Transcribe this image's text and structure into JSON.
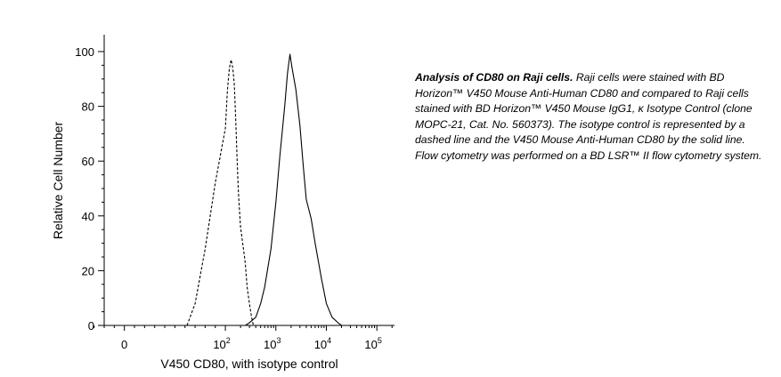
{
  "chart_data": {
    "type": "line",
    "xlabel": "V450 CD80, with isotype control",
    "ylabel": "Relative Cell Number",
    "xscale": "biexponential (log above 10^2, linear through 0)",
    "xlim_decades": [
      -0.4,
      5.35
    ],
    "ylim": [
      0,
      100
    ],
    "yticks": [
      {
        "value": 0,
        "label": "0"
      },
      {
        "value": 20,
        "label": "20"
      },
      {
        "value": 40,
        "label": "40"
      },
      {
        "value": 60,
        "label": "60"
      },
      {
        "value": 80,
        "label": "80"
      },
      {
        "value": 100,
        "label": "100"
      }
    ],
    "xticks": [
      {
        "value": 0,
        "base": "0",
        "exp": ""
      },
      {
        "value": 100,
        "base": "10",
        "exp": "2"
      },
      {
        "value": 1000,
        "base": "10",
        "exp": "3"
      },
      {
        "value": 10000,
        "base": "10",
        "exp": "4"
      },
      {
        "value": 100000,
        "base": "10",
        "exp": "5"
      }
    ],
    "grid": false,
    "legend": "none",
    "series": [
      {
        "style": "dashed",
        "x": [
          62,
          70,
          80,
          90,
          100,
          110,
          120,
          130,
          140,
          150,
          160,
          170,
          180,
          190,
          200,
          220,
          240,
          250,
          270,
          300,
          330,
          360
        ],
        "y": [
          0,
          8,
          28,
          52,
          72,
          86,
          94,
          97,
          94,
          88,
          76,
          62,
          50,
          42,
          36,
          30,
          25,
          22,
          14,
          8,
          3,
          0
        ]
      },
      {
        "style": "solid",
        "x": [
          250,
          300,
          400,
          500,
          600,
          800,
          1000,
          1200,
          1500,
          1700,
          1900,
          2100,
          2500,
          3000,
          3500,
          4000,
          5000,
          6000,
          8000,
          10000,
          13000,
          17000,
          20000
        ],
        "y": [
          0,
          1,
          3,
          8,
          14,
          28,
          45,
          62,
          80,
          92,
          99,
          94,
          86,
          73,
          58,
          46,
          39,
          30,
          17,
          8,
          3,
          1,
          0
        ]
      }
    ]
  },
  "caption": {
    "title": "Analysis of CD80 on Raji cells.",
    "body": "Raji cells were stained with BD Horizon™ V450 Mouse Anti-Human CD80 and compared to Raji cells stained with BD Horizon™ V450 Mouse IgG1, κ Isotype Control (clone MOPC-21, Cat. No. 560373). The isotype control is represented by a dashed line and the V450 Mouse Anti-Human CD80 by the solid line. Flow cytometry was performed on a BD LSR™ II flow cytometry system."
  }
}
